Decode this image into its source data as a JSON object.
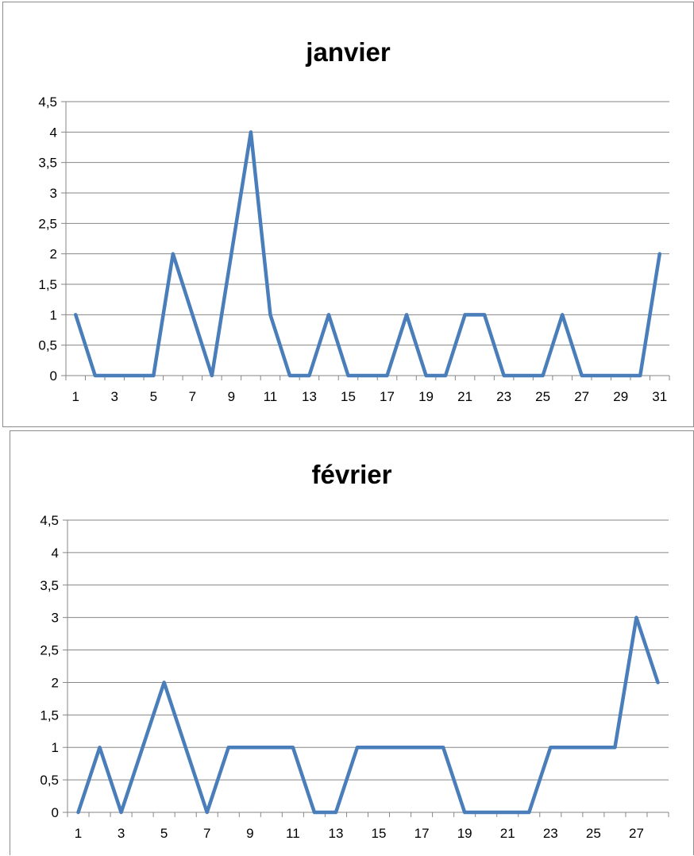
{
  "chart_data": [
    {
      "type": "line",
      "title": "janvier",
      "xlabel": "",
      "ylabel": "",
      "x": [
        1,
        2,
        3,
        4,
        5,
        6,
        7,
        8,
        9,
        10,
        11,
        12,
        13,
        14,
        15,
        16,
        17,
        18,
        19,
        20,
        21,
        22,
        23,
        24,
        25,
        26,
        27,
        28,
        29,
        30,
        31
      ],
      "series": [
        {
          "values": [
            1,
            0,
            0,
            0,
            0,
            2,
            1,
            0,
            2,
            4,
            1,
            0,
            0,
            1,
            0,
            0,
            0,
            1,
            0,
            0,
            1,
            1,
            0,
            0,
            0,
            1,
            0,
            0,
            0,
            0,
            2
          ]
        }
      ],
      "x_tick_labels": [
        "1",
        "3",
        "5",
        "7",
        "9",
        "11",
        "13",
        "15",
        "17",
        "19",
        "21",
        "23",
        "25",
        "27",
        "29",
        "31"
      ],
      "y_tick_labels": [
        "0",
        "0,5",
        "1",
        "1,5",
        "2",
        "2,5",
        "3",
        "3,5",
        "4",
        "4,5"
      ],
      "ylim": [
        0,
        4.5
      ],
      "grid": true,
      "legend": "none",
      "line_color": "#4a7ebb"
    },
    {
      "type": "line",
      "title": "février",
      "xlabel": "",
      "ylabel": "",
      "x": [
        1,
        2,
        3,
        4,
        5,
        6,
        7,
        8,
        9,
        10,
        11,
        12,
        13,
        14,
        15,
        16,
        17,
        18,
        19,
        20,
        21,
        22,
        23,
        24,
        25,
        26,
        27,
        28
      ],
      "series": [
        {
          "values": [
            0,
            1,
            0,
            1,
            2,
            1,
            0,
            1,
            1,
            1,
            1,
            0,
            0,
            1,
            1,
            1,
            1,
            1,
            0,
            0,
            0,
            0,
            1,
            1,
            1,
            1,
            3,
            2
          ]
        }
      ],
      "x_tick_labels": [
        "1",
        "3",
        "5",
        "7",
        "9",
        "11",
        "13",
        "15",
        "17",
        "19",
        "21",
        "23",
        "25",
        "27"
      ],
      "y_tick_labels": [
        "0",
        "0,5",
        "1",
        "1,5",
        "2",
        "2,5",
        "3",
        "3,5",
        "4",
        "4,5"
      ],
      "ylim": [
        0,
        4.5
      ],
      "grid": true,
      "legend": "none",
      "line_color": "#4a7ebb"
    }
  ]
}
